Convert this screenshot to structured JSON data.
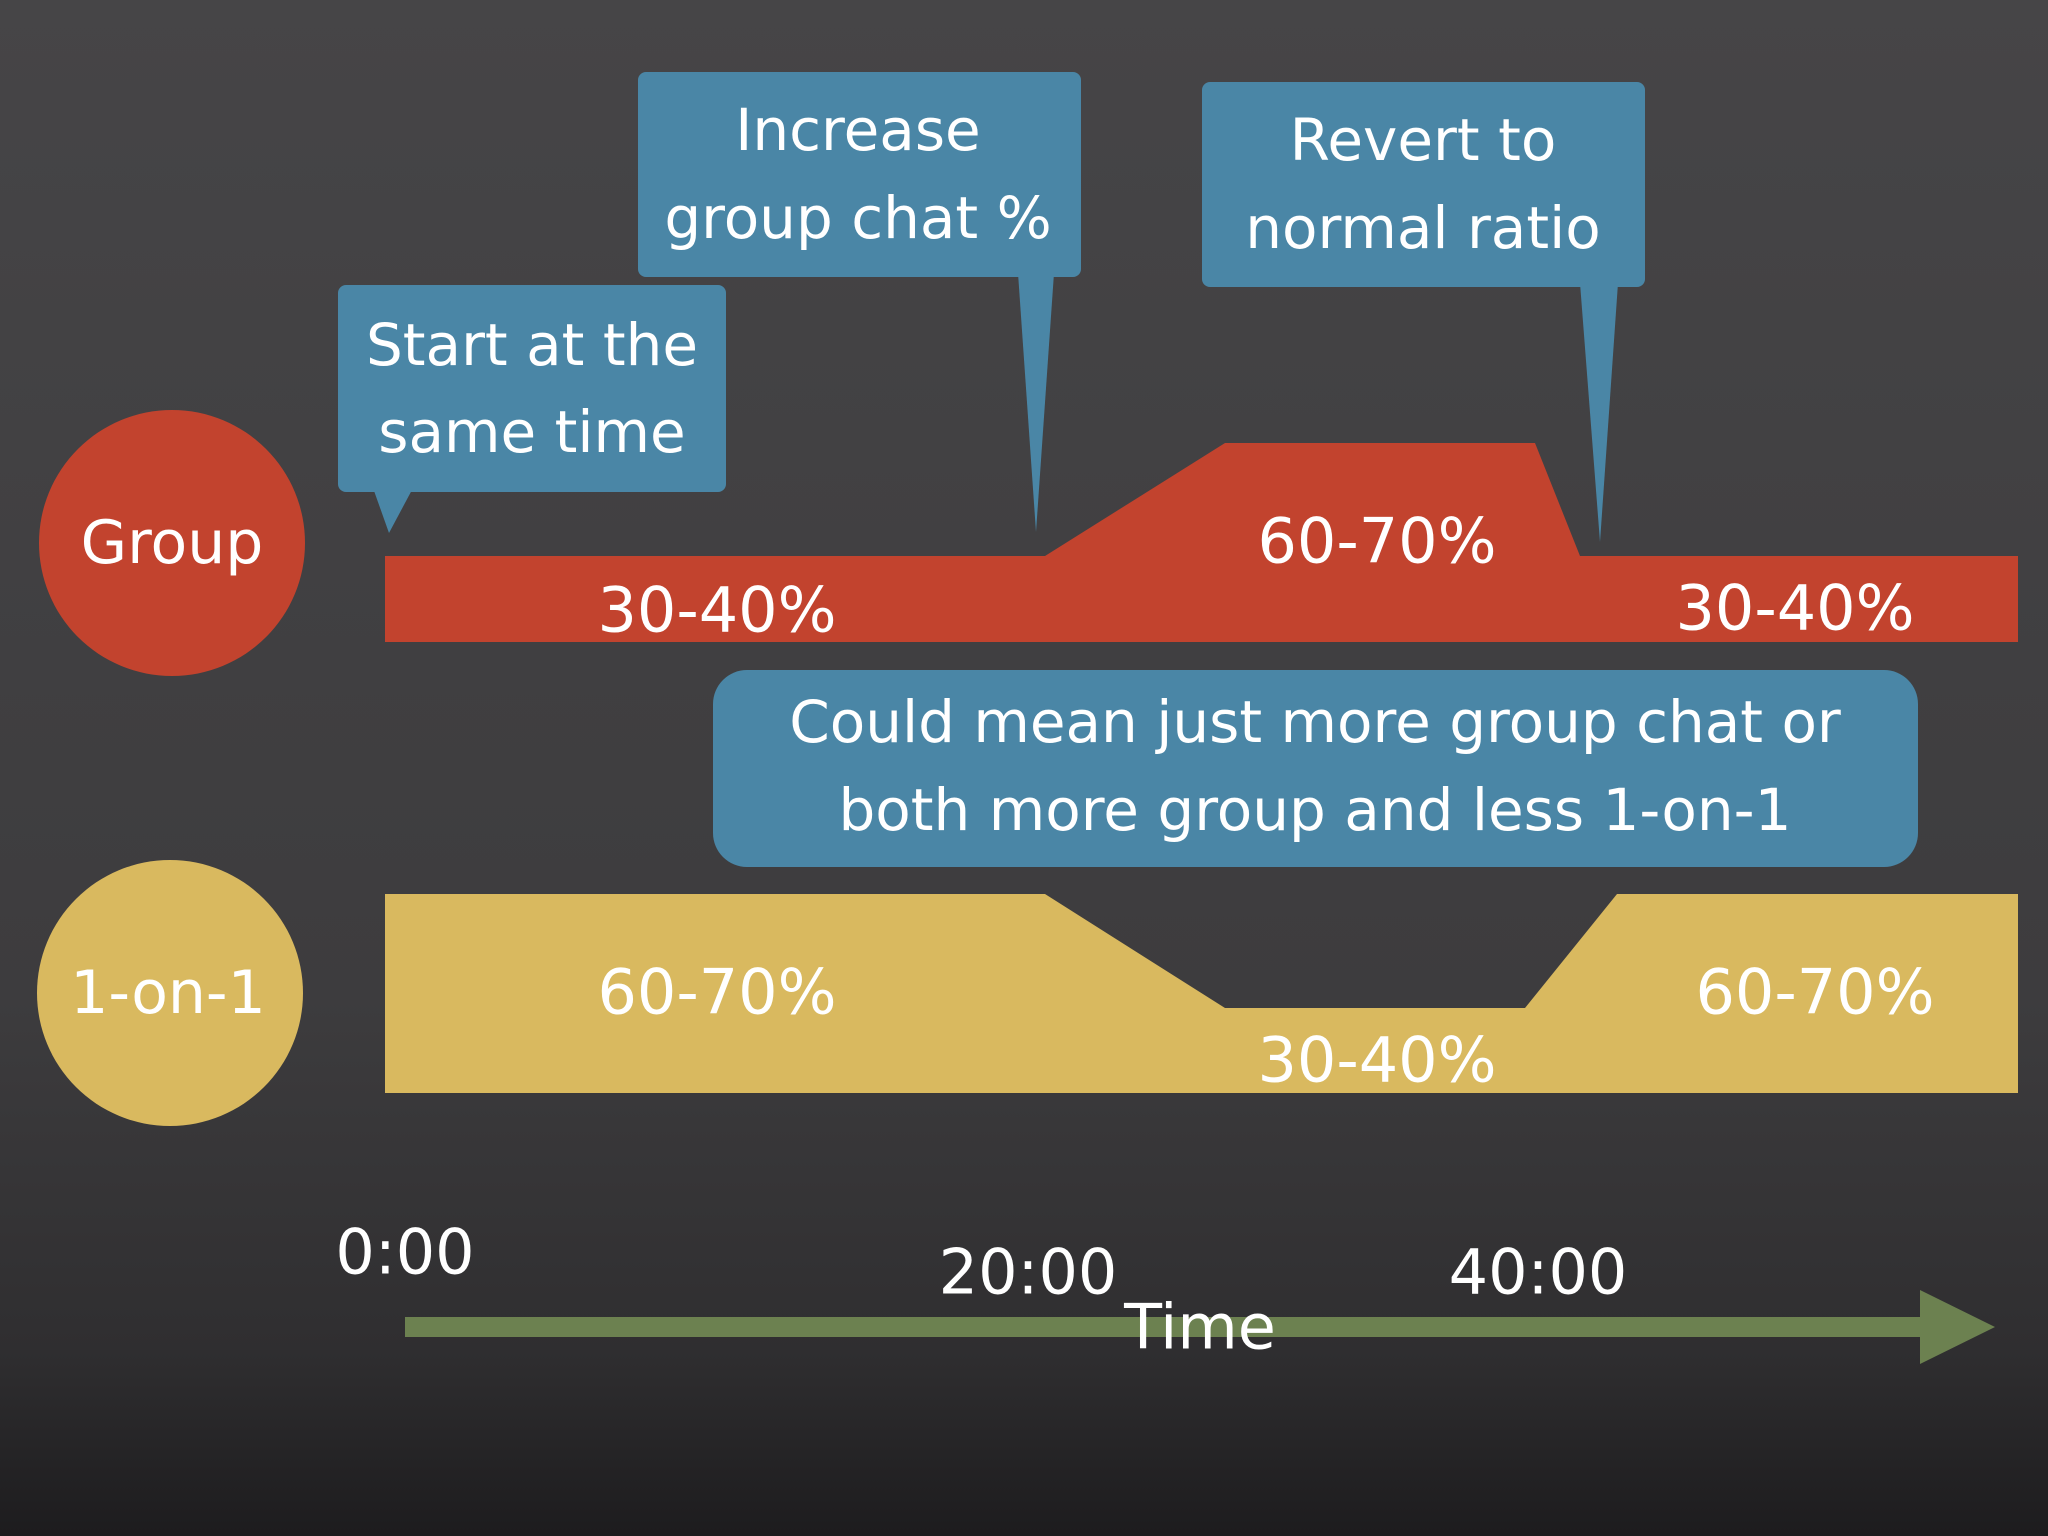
{
  "rows": {
    "group": {
      "label": "Group",
      "color": "#c2432e",
      "segments": [
        "30-40%",
        "60-70%",
        "30-40%"
      ]
    },
    "one_on_one": {
      "label": "1-on-1",
      "color": "#d9b95f",
      "segments": [
        "60-70%",
        "30-40%",
        "60-70%"
      ]
    }
  },
  "callouts": {
    "start": [
      "Start at the",
      "same time"
    ],
    "increase": [
      "Increase",
      "group chat %"
    ],
    "revert": [
      "Revert to",
      "normal ratio"
    ],
    "note": [
      "Could mean just more group chat or",
      "both more group and less 1-on-1"
    ],
    "color": "#4a86a6"
  },
  "timeline": {
    "ticks": [
      "0:00",
      "20:00",
      "40:00"
    ],
    "label": "Time",
    "arrow_color": "#6c8150"
  }
}
